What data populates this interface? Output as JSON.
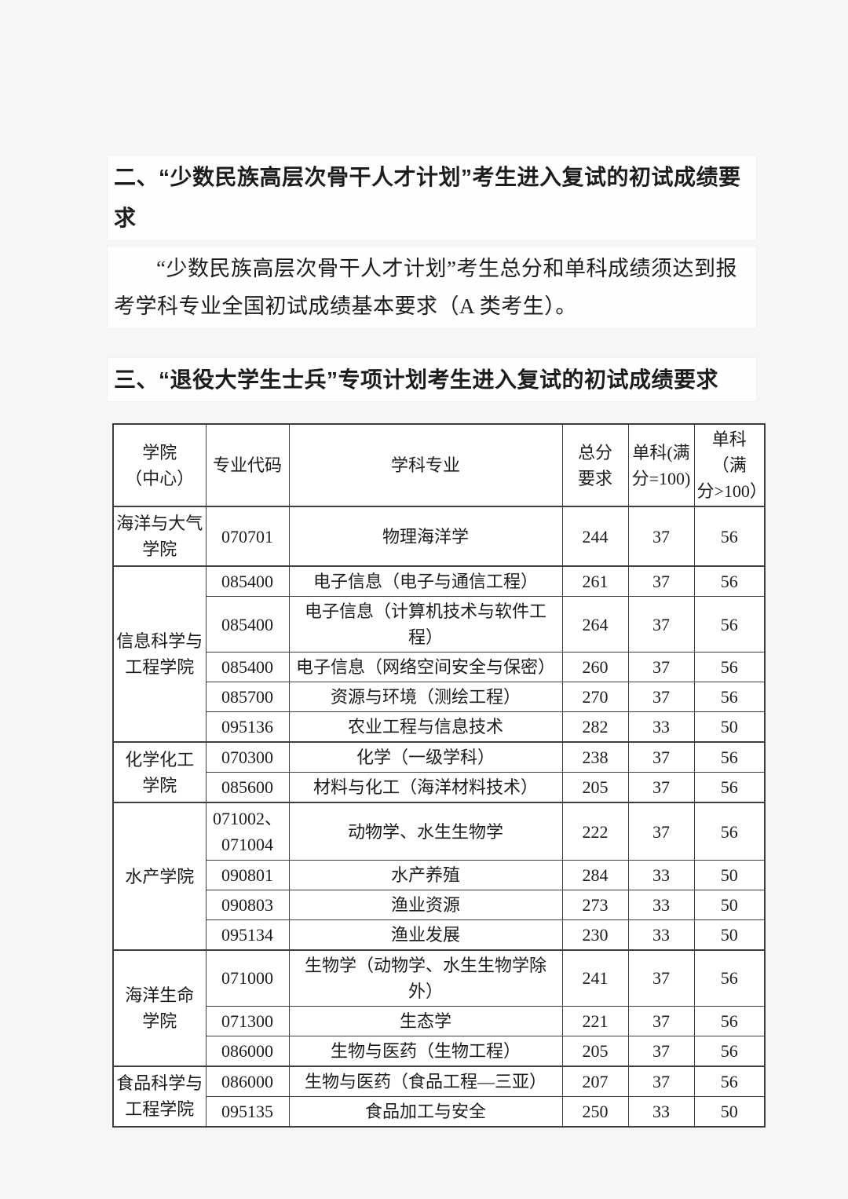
{
  "document": {
    "section2_title": "二、“少数民族高层次骨干人才计划”考生进入复试的初试成绩要求",
    "section2_body": "“少数民族高层次骨干人才计划”考生总分和单科成绩须达到报考学科专业全国初试成绩基本要求（A 类考生）。",
    "section3_title": "三、“退役大学生士兵”专项计划考生进入复试的初试成绩要求"
  },
  "table": {
    "headers": {
      "college": "学院\n（中心）",
      "code": "专业代码",
      "subject": "学科专业",
      "total": "总分\n要求",
      "single100": "单科(满\n分=100)",
      "singleOver100": "单科（满\n分>100）"
    },
    "groups": [
      {
        "college": "海洋与大气\n学院",
        "rows": [
          {
            "code": "070701",
            "subject": "物理海洋学",
            "total": "244",
            "s1": "37",
            "s2": "56"
          }
        ]
      },
      {
        "college": "信息科学与\n工程学院",
        "rows": [
          {
            "code": "085400",
            "subject": "电子信息（电子与通信工程）",
            "total": "261",
            "s1": "37",
            "s2": "56"
          },
          {
            "code": "085400",
            "subject": "电子信息（计算机技术与软件工程）",
            "total": "264",
            "s1": "37",
            "s2": "56"
          },
          {
            "code": "085400",
            "subject": "电子信息（网络空间安全与保密）",
            "total": "260",
            "s1": "37",
            "s2": "56"
          },
          {
            "code": "085700",
            "subject": "资源与环境（测绘工程）",
            "total": "270",
            "s1": "37",
            "s2": "56"
          },
          {
            "code": "095136",
            "subject": "农业工程与信息技术",
            "total": "282",
            "s1": "33",
            "s2": "50"
          }
        ]
      },
      {
        "college": "化学化工\n学院",
        "rows": [
          {
            "code": "070300",
            "subject": "化学（一级学科）",
            "total": "238",
            "s1": "37",
            "s2": "56"
          },
          {
            "code": "085600",
            "subject": "材料与化工（海洋材料技术）",
            "total": "205",
            "s1": "37",
            "s2": "56"
          }
        ]
      },
      {
        "college": "水产学院",
        "rows": [
          {
            "code": "071002、\n071004",
            "subject": "动物学、水生生物学",
            "total": "222",
            "s1": "37",
            "s2": "56"
          },
          {
            "code": "090801",
            "subject": "水产养殖",
            "total": "284",
            "s1": "33",
            "s2": "50"
          },
          {
            "code": "090803",
            "subject": "渔业资源",
            "total": "273",
            "s1": "33",
            "s2": "50"
          },
          {
            "code": "095134",
            "subject": "渔业发展",
            "total": "230",
            "s1": "33",
            "s2": "50"
          }
        ]
      },
      {
        "college": "海洋生命\n学院",
        "rows": [
          {
            "code": "071000",
            "subject": "生物学（动物学、水生生物学除外）",
            "total": "241",
            "s1": "37",
            "s2": "56"
          },
          {
            "code": "071300",
            "subject": "生态学",
            "total": "221",
            "s1": "37",
            "s2": "56"
          },
          {
            "code": "086000",
            "subject": "生物与医药（生物工程）",
            "total": "205",
            "s1": "37",
            "s2": "56"
          }
        ]
      },
      {
        "college": "食品科学与\n工程学院",
        "rows": [
          {
            "code": "086000",
            "subject": "生物与医药（食品工程—三亚）",
            "total": "207",
            "s1": "37",
            "s2": "56"
          },
          {
            "code": "095135",
            "subject": "食品加工与安全",
            "total": "250",
            "s1": "33",
            "s2": "50"
          }
        ]
      }
    ]
  }
}
